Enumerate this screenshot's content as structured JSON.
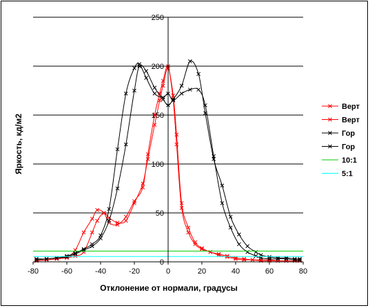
{
  "chart_data": {
    "type": "line",
    "title": "",
    "xlabel": "Отклонение от нормали, градусы",
    "ylabel": "Яркость, кд/м2",
    "xlim": [
      -80,
      80
    ],
    "ylim": [
      0,
      250
    ],
    "xticks": [
      -80,
      -60,
      -40,
      -20,
      0,
      20,
      40,
      60,
      80
    ],
    "yticks": [
      0,
      50,
      100,
      150,
      200,
      250
    ],
    "grid": "horizontal",
    "legend_position": "right",
    "series": [
      {
        "name": "Верт",
        "color": "#ff0000",
        "marker": "x",
        "x": [
          -78,
          -72,
          -66,
          -60,
          -55,
          -50,
          -45,
          -42,
          -38,
          -35,
          -30,
          -25,
          -20,
          -15,
          -12,
          -8,
          -5,
          -3,
          0,
          3,
          5,
          8,
          12,
          16,
          20,
          25,
          30,
          35,
          40,
          45,
          50,
          55,
          60,
          65,
          70,
          75,
          78
        ],
        "y": [
          1,
          2,
          3,
          4,
          6,
          10,
          30,
          42,
          50,
          45,
          40,
          42,
          60,
          80,
          105,
          140,
          165,
          180,
          198,
          170,
          130,
          60,
          35,
          20,
          14,
          10,
          8,
          6,
          4,
          3,
          2,
          2,
          2,
          1,
          1,
          1,
          1
        ]
      },
      {
        "name": "Верт",
        "color": "#ff0000",
        "marker": "x",
        "x": [
          -78,
          -72,
          -66,
          -60,
          -55,
          -50,
          -45,
          -42,
          -38,
          -35,
          -30,
          -25,
          -20,
          -15,
          -12,
          -8,
          -5,
          -3,
          0,
          3,
          5,
          8,
          12,
          16,
          20,
          25,
          30,
          35,
          40,
          45,
          50,
          55,
          60,
          65,
          70,
          75,
          78
        ],
        "y": [
          1,
          2,
          3,
          5,
          12,
          30,
          44,
          53,
          50,
          40,
          38,
          46,
          62,
          76,
          110,
          150,
          172,
          185,
          200,
          165,
          120,
          55,
          30,
          18,
          13,
          10,
          7,
          5,
          3,
          2,
          2,
          1,
          1,
          1,
          1,
          1,
          1
        ]
      },
      {
        "name": "Гор",
        "color": "#000000",
        "marker": "x",
        "x": [
          -78,
          -72,
          -66,
          -60,
          -55,
          -50,
          -45,
          -40,
          -35,
          -30,
          -25,
          -20,
          -17,
          -13,
          -8,
          -3,
          0,
          3,
          8,
          13,
          18,
          22,
          27,
          32,
          37,
          42,
          47,
          52,
          55,
          60,
          65,
          70,
          75,
          78
        ],
        "y": [
          3,
          3,
          4,
          5,
          8,
          12,
          16,
          24,
          42,
          75,
          120,
          175,
          200,
          195,
          178,
          166,
          160,
          166,
          180,
          205,
          192,
          152,
          105,
          78,
          46,
          28,
          16,
          10,
          7,
          5,
          4,
          4,
          3,
          3
        ]
      },
      {
        "name": "Гор",
        "color": "#000000",
        "marker": "x",
        "x": [
          -78,
          -72,
          -66,
          -60,
          -55,
          -50,
          -45,
          -40,
          -35,
          -30,
          -25,
          -20,
          -17,
          -13,
          -8,
          -3,
          0,
          3,
          8,
          13,
          18,
          22,
          27,
          32,
          37,
          42,
          47,
          52,
          55,
          60,
          65,
          70,
          75,
          78
        ],
        "y": [
          2,
          3,
          4,
          6,
          9,
          13,
          18,
          27,
          54,
          115,
          172,
          198,
          202,
          188,
          172,
          168,
          172,
          165,
          172,
          176,
          176,
          160,
          108,
          60,
          35,
          18,
          10,
          6,
          4,
          3,
          3,
          3,
          2,
          2
        ]
      },
      {
        "name": "10:1",
        "color": "#00cc00",
        "marker": "none",
        "x": [
          -80,
          80
        ],
        "y": [
          11,
          11
        ]
      },
      {
        "name": "5:1",
        "color": "#00ffff",
        "marker": "none",
        "x": [
          -80,
          80
        ],
        "y": [
          5.5,
          5.5
        ]
      }
    ]
  }
}
